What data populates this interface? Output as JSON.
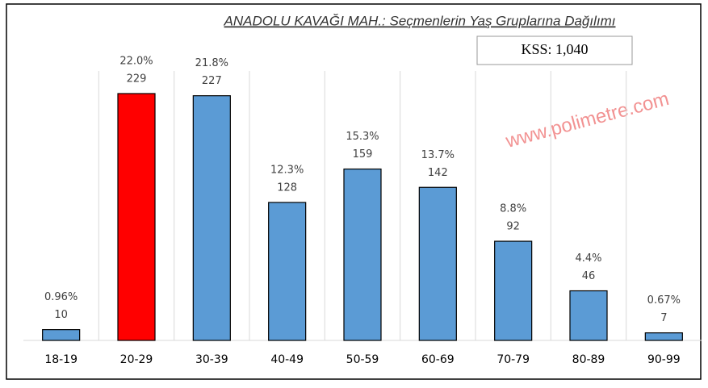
{
  "chart_data": {
    "type": "bar",
    "title": "ANADOLU KAVAĞI MAH.: Seçmenlerin Yaş Gruplarına Dağılımı",
    "annotation": "KSS: 1,040",
    "watermark": "www.polimetre.com",
    "categories": [
      "18-19",
      "20-29",
      "30-39",
      "40-49",
      "50-59",
      "60-69",
      "70-79",
      "80-89",
      "90-99"
    ],
    "values": [
      10,
      229,
      227,
      128,
      159,
      142,
      92,
      46,
      7
    ],
    "percent_labels": [
      "0.96%",
      "22.0%",
      "21.8%",
      "12.3%",
      "15.3%",
      "13.7%",
      "8.8%",
      "4.4%",
      "0.67%"
    ],
    "colors": [
      "#5b9bd5",
      "#ff0000",
      "#5b9bd5",
      "#5b9bd5",
      "#5b9bd5",
      "#5b9bd5",
      "#5b9bd5",
      "#5b9bd5",
      "#5b9bd5"
    ]
  }
}
